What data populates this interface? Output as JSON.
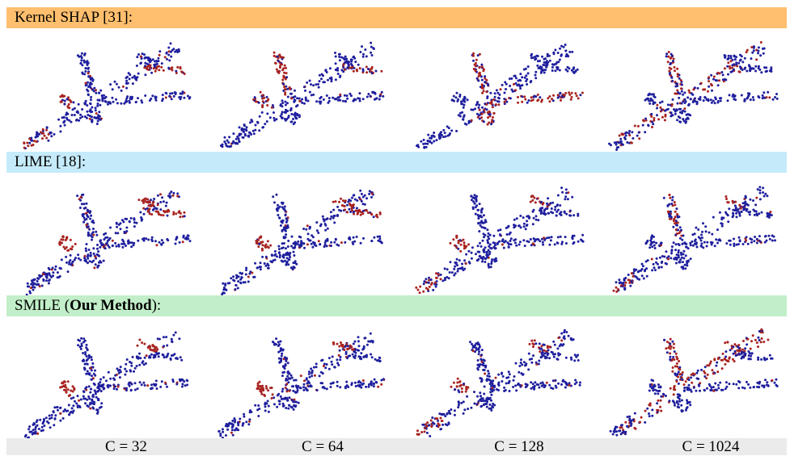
{
  "rows": [
    {
      "label": "Kernel SHAP [31]:",
      "color": "#ffbf6e"
    },
    {
      "label": "LIME [18]:",
      "color": "#c5ebfb"
    },
    {
      "label_prefix": "SMILE (",
      "label_bold": "Our Method",
      "label_suffix": "):",
      "color": "#c2efc9"
    }
  ],
  "columns": [
    "C = 32",
    "C = 64",
    "C = 128",
    "C = 1024"
  ],
  "colors": {
    "point_normal": "#1f1f9e",
    "point_highlight": "#a8231f",
    "footer": "#ebebeb"
  }
}
